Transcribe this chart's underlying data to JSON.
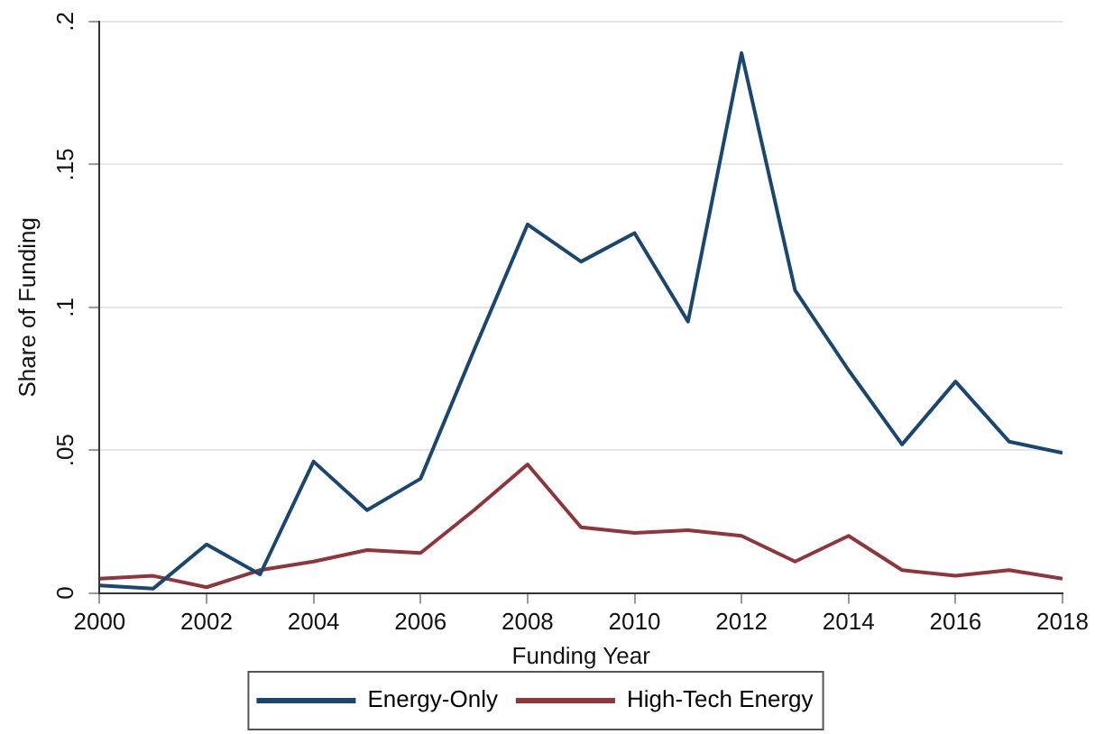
{
  "chart_data": {
    "type": "line",
    "xlabel": "Funding Year",
    "ylabel": "Share of Funding",
    "x": [
      2000,
      2001,
      2002,
      2003,
      2004,
      2005,
      2006,
      2007,
      2008,
      2009,
      2010,
      2011,
      2012,
      2013,
      2014,
      2015,
      2016,
      2017,
      2018
    ],
    "series": [
      {
        "name": "Energy-Only",
        "color": "#1a476f",
        "values": [
          0.0026,
          0.0015,
          0.017,
          0.0065,
          0.046,
          0.029,
          0.04,
          0.085,
          0.129,
          0.116,
          0.126,
          0.095,
          0.189,
          0.106,
          0.078,
          0.052,
          0.074,
          0.053,
          0.049
        ]
      },
      {
        "name": "High-Tech Energy",
        "color": "#90353b",
        "values": [
          0.005,
          0.006,
          0.002,
          0.008,
          0.011,
          0.015,
          0.014,
          0.029,
          0.045,
          0.023,
          0.021,
          0.022,
          0.02,
          0.011,
          0.02,
          0.008,
          0.006,
          0.008,
          0.005
        ]
      }
    ],
    "xlim": [
      2000,
      2018
    ],
    "xticks": [
      2000,
      2002,
      2004,
      2006,
      2008,
      2010,
      2012,
      2014,
      2016,
      2018
    ],
    "ylim": [
      0,
      0.2
    ],
    "yticks": [
      0,
      {
        "value": 0.05,
        "label": ".05"
      },
      {
        "value": 0.1,
        "label": ".1"
      },
      {
        "value": 0.15,
        "label": ".15"
      },
      {
        "value": 0.2,
        "label": ".2"
      }
    ],
    "grid": "y",
    "legend": "bottom",
    "marker": "none",
    "line_style": "solid"
  }
}
